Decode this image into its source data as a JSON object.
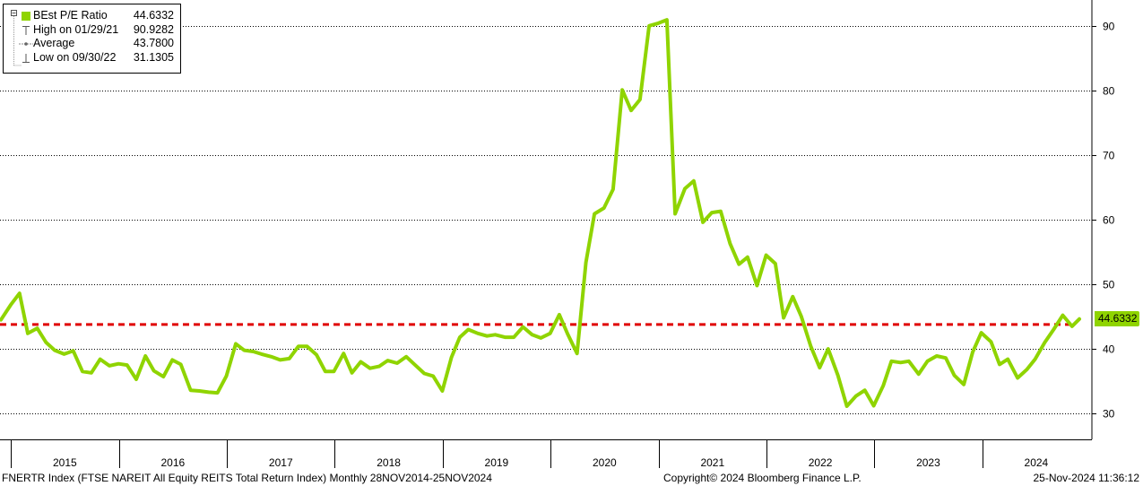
{
  "legend": {
    "series_label": "BEst P/E Ratio",
    "series_value": "44.6332",
    "high_label": "High on 01/29/21",
    "high_value": "90.9282",
    "avg_label": "Average",
    "avg_value": "43.7800",
    "low_label": "Low on 09/30/22",
    "low_value": "31.1305"
  },
  "last_value_tag": "44.6332",
  "footer": {
    "left": "FNERTR Index (FTSE NAREIT All Equity REITS Total Return Index)  Monthly 28NOV2014-25NOV2024",
    "center": "Copyright© 2024 Bloomberg Finance L.P.",
    "right": "25-Nov-2024 11:36:12"
  },
  "colors": {
    "series": "#8fd400",
    "average_line": "#e00000",
    "grid": "#000000",
    "tag_bg": "#8fd400"
  },
  "chart_data": {
    "type": "line",
    "title": "",
    "xlabel": "",
    "ylabel": "",
    "x_range": [
      "2014-11-28",
      "2024-11-25"
    ],
    "ylim": [
      26,
      94
    ],
    "y_ticks": [
      30,
      40,
      50,
      60,
      70,
      80,
      90
    ],
    "year_labels": [
      "2015",
      "2016",
      "2017",
      "2018",
      "2019",
      "2020",
      "2021",
      "2022",
      "2023",
      "2024"
    ],
    "grid": "horizontal dotted",
    "y_axis_side": "right",
    "average": 43.78,
    "series": [
      {
        "name": "BEst P/E Ratio",
        "points": [
          [
            "2014-11-28",
            44.5
          ],
          [
            "2014-12-31",
            46.8
          ],
          [
            "2015-01-30",
            48.6
          ],
          [
            "2015-02-27",
            42.4
          ],
          [
            "2015-03-31",
            43.2
          ],
          [
            "2015-04-30",
            41.0
          ],
          [
            "2015-05-29",
            39.8
          ],
          [
            "2015-06-30",
            39.2
          ],
          [
            "2015-07-31",
            39.7
          ],
          [
            "2015-08-31",
            36.5
          ],
          [
            "2015-09-30",
            36.3
          ],
          [
            "2015-10-30",
            38.4
          ],
          [
            "2015-11-30",
            37.4
          ],
          [
            "2015-12-31",
            37.7
          ],
          [
            "2016-01-29",
            37.5
          ],
          [
            "2016-02-29",
            35.3
          ],
          [
            "2016-03-31",
            38.9
          ],
          [
            "2016-04-29",
            36.6
          ],
          [
            "2016-05-31",
            35.7
          ],
          [
            "2016-06-30",
            38.3
          ],
          [
            "2016-07-29",
            37.6
          ],
          [
            "2016-08-31",
            33.6
          ],
          [
            "2016-09-30",
            33.5
          ],
          [
            "2016-10-31",
            33.3
          ],
          [
            "2016-11-30",
            33.2
          ],
          [
            "2016-12-30",
            35.8
          ],
          [
            "2017-01-31",
            40.8
          ],
          [
            "2017-02-28",
            39.8
          ],
          [
            "2017-03-31",
            39.6
          ],
          [
            "2017-04-28",
            39.2
          ],
          [
            "2017-05-31",
            38.8
          ],
          [
            "2017-06-30",
            38.3
          ],
          [
            "2017-07-31",
            38.5
          ],
          [
            "2017-08-31",
            40.4
          ],
          [
            "2017-09-29",
            40.4
          ],
          [
            "2017-10-31",
            39.1
          ],
          [
            "2017-11-30",
            36.5
          ],
          [
            "2017-12-29",
            36.5
          ],
          [
            "2018-01-31",
            39.3
          ],
          [
            "2018-02-28",
            36.3
          ],
          [
            "2018-03-30",
            38.0
          ],
          [
            "2018-04-30",
            37.0
          ],
          [
            "2018-05-31",
            37.3
          ],
          [
            "2018-06-29",
            38.2
          ],
          [
            "2018-07-31",
            37.8
          ],
          [
            "2018-08-31",
            38.8
          ],
          [
            "2018-09-28",
            37.6
          ],
          [
            "2018-10-31",
            36.2
          ],
          [
            "2018-11-30",
            35.8
          ],
          [
            "2018-12-31",
            33.5
          ],
          [
            "2019-01-31",
            38.7
          ],
          [
            "2019-02-28",
            41.8
          ],
          [
            "2019-03-29",
            43.0
          ],
          [
            "2019-04-30",
            42.4
          ],
          [
            "2019-05-31",
            42.0
          ],
          [
            "2019-06-28",
            42.2
          ],
          [
            "2019-07-31",
            41.8
          ],
          [
            "2019-08-30",
            41.8
          ],
          [
            "2019-09-30",
            43.4
          ],
          [
            "2019-10-31",
            42.2
          ],
          [
            "2019-11-29",
            41.7
          ],
          [
            "2019-12-31",
            42.4
          ],
          [
            "2020-01-31",
            45.3
          ],
          [
            "2020-02-28",
            42.3
          ],
          [
            "2020-03-31",
            39.3
          ],
          [
            "2020-04-30",
            53.4
          ],
          [
            "2020-05-29",
            60.9
          ],
          [
            "2020-06-30",
            61.8
          ],
          [
            "2020-07-31",
            64.7
          ],
          [
            "2020-08-31",
            80.1
          ],
          [
            "2020-09-30",
            76.9
          ],
          [
            "2020-10-30",
            78.6
          ],
          [
            "2020-11-30",
            90.0
          ],
          [
            "2020-12-31",
            90.4
          ],
          [
            "2021-01-29",
            90.93
          ],
          [
            "2021-02-26",
            60.9
          ],
          [
            "2021-03-31",
            64.8
          ],
          [
            "2021-04-30",
            66.0
          ],
          [
            "2021-05-31",
            59.6
          ],
          [
            "2021-06-30",
            61.1
          ],
          [
            "2021-07-30",
            61.3
          ],
          [
            "2021-08-31",
            56.3
          ],
          [
            "2021-09-30",
            53.1
          ],
          [
            "2021-10-29",
            54.2
          ],
          [
            "2021-11-30",
            49.8
          ],
          [
            "2021-12-31",
            54.5
          ],
          [
            "2022-01-31",
            53.2
          ],
          [
            "2022-02-28",
            44.8
          ],
          [
            "2022-03-31",
            48.1
          ],
          [
            "2022-04-29",
            45.0
          ],
          [
            "2022-05-31",
            40.4
          ],
          [
            "2022-06-30",
            37.1
          ],
          [
            "2022-07-29",
            40.0
          ],
          [
            "2022-08-31",
            35.9
          ],
          [
            "2022-09-30",
            31.13
          ],
          [
            "2022-10-31",
            32.7
          ],
          [
            "2022-11-30",
            33.6
          ],
          [
            "2022-12-30",
            31.2
          ],
          [
            "2023-01-31",
            34.3
          ],
          [
            "2023-02-28",
            38.1
          ],
          [
            "2023-03-31",
            37.9
          ],
          [
            "2023-04-28",
            38.1
          ],
          [
            "2023-05-31",
            36.1
          ],
          [
            "2023-06-30",
            38.1
          ],
          [
            "2023-07-31",
            38.9
          ],
          [
            "2023-08-31",
            38.6
          ],
          [
            "2023-09-29",
            35.9
          ],
          [
            "2023-10-31",
            34.5
          ],
          [
            "2023-11-30",
            39.5
          ],
          [
            "2023-12-29",
            42.5
          ],
          [
            "2024-01-31",
            41.1
          ],
          [
            "2024-02-29",
            37.6
          ],
          [
            "2024-03-28",
            38.4
          ],
          [
            "2024-04-30",
            35.5
          ],
          [
            "2024-05-31",
            36.8
          ],
          [
            "2024-06-28",
            38.4
          ],
          [
            "2024-07-31",
            41.0
          ],
          [
            "2024-08-30",
            43.0
          ],
          [
            "2024-09-30",
            45.2
          ],
          [
            "2024-10-31",
            43.5
          ],
          [
            "2024-11-25",
            44.63
          ]
        ]
      }
    ]
  }
}
